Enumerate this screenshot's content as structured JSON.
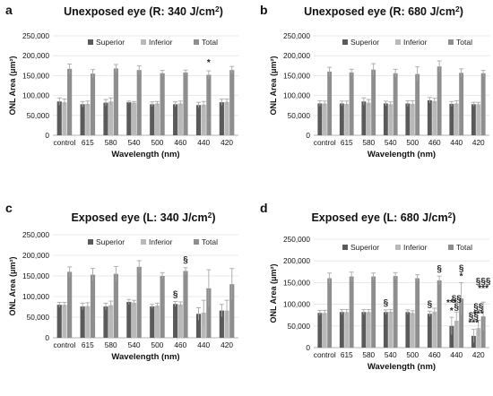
{
  "colors": {
    "superior": "#5a5a5a",
    "inferior": "#b9b9b9",
    "total": "#8e8e8e",
    "grid": "#e2e2e2",
    "errorbar": "#a8a8a8"
  },
  "chart_data": [
    {
      "panel": "a",
      "type": "bar",
      "title_main": "Unexposed eye (R: 340 J/cm",
      "title_sup": "2",
      "title_end": ")",
      "ylabel": "ONL Area (μm²)",
      "xlabel": "Wavelength (nm)",
      "ylim": [
        0,
        250000
      ],
      "yticks": [
        "0",
        "50,000",
        "100,000",
        "150,000",
        "200,000",
        "250,000"
      ],
      "grid": true,
      "legend_position": "top",
      "categories": [
        "control",
        "615",
        "580",
        "540",
        "500",
        "460",
        "440",
        "420"
      ],
      "series": [
        {
          "name": "Superior",
          "values": [
            85000,
            78000,
            82000,
            83000,
            78000,
            78000,
            76000,
            83000
          ],
          "errors": [
            9000,
            7000,
            8000,
            3000,
            6000,
            6000,
            7000,
            8000
          ]
        },
        {
          "name": "Inferior",
          "values": [
            83000,
            79000,
            85000,
            82000,
            80000,
            80000,
            77000,
            84000
          ],
          "errors": [
            8000,
            7000,
            9000,
            3000,
            5000,
            6000,
            8000,
            7000
          ]
        },
        {
          "name": "Total",
          "values": [
            167000,
            155000,
            168000,
            164000,
            156000,
            158000,
            152000,
            164000
          ],
          "errors": [
            12000,
            10000,
            10000,
            11000,
            7000,
            6000,
            10000,
            9000
          ]
        }
      ],
      "annotations": [
        {
          "category": "440",
          "text": "*"
        }
      ]
    },
    {
      "panel": "b",
      "type": "bar",
      "title_main": "Unexposed eye (R: 680 J/cm",
      "title_sup": "2",
      "title_end": ")",
      "ylabel": "ONL Area (μm²)",
      "xlabel": "Wavelength (nm)",
      "ylim": [
        0,
        250000
      ],
      "yticks": [
        "0",
        "50,000",
        "100,000",
        "150,000",
        "200,000",
        "250,000"
      ],
      "grid": true,
      "legend_position": "top",
      "categories": [
        "control",
        "615",
        "580",
        "540",
        "500",
        "460",
        "440",
        "420"
      ],
      "series": [
        {
          "name": "Superior",
          "values": [
            80000,
            80000,
            85000,
            80000,
            80000,
            88000,
            79000,
            78000
          ],
          "errors": [
            7000,
            6000,
            9000,
            6000,
            7000,
            7000,
            6000,
            5000
          ]
        },
        {
          "name": "Inferior",
          "values": [
            80000,
            79000,
            82000,
            78000,
            79000,
            86000,
            80000,
            78000
          ],
          "errors": [
            6000,
            7000,
            8000,
            6000,
            8000,
            7000,
            7000,
            5000
          ]
        },
        {
          "name": "Total",
          "values": [
            160000,
            158000,
            165000,
            156000,
            154000,
            173000,
            157000,
            156000
          ],
          "errors": [
            11000,
            8000,
            15000,
            10000,
            18000,
            14000,
            10000,
            7000
          ]
        }
      ],
      "annotations": []
    },
    {
      "panel": "c",
      "type": "bar",
      "title_main": "Exposed eye (L: 340 J/cm",
      "title_sup": "2",
      "title_end": ")",
      "ylabel": "ONL Area (μm²)",
      "xlabel": "Wavelength (nm)",
      "ylim": [
        0,
        250000
      ],
      "yticks": [
        "0",
        "50,000",
        "100,000",
        "150,000",
        "200,000",
        "250,000"
      ],
      "grid": true,
      "legend_position": "top",
      "categories": [
        "control",
        "615",
        "580",
        "540",
        "500",
        "460",
        "440",
        "420"
      ],
      "series": [
        {
          "name": "Superior",
          "values": [
            80000,
            76000,
            76000,
            87000,
            76000,
            82000,
            58000,
            66000
          ],
          "errors": [
            6000,
            8000,
            8000,
            6000,
            5000,
            6000,
            15000,
            15000
          ]
        },
        {
          "name": "Inferior",
          "values": [
            80000,
            77000,
            79000,
            85000,
            78000,
            81000,
            61000,
            66000
          ],
          "errors": [
            6000,
            8000,
            10000,
            6000,
            6000,
            6000,
            30000,
            25000
          ]
        },
        {
          "name": "Total",
          "values": [
            160000,
            153000,
            155000,
            172000,
            150000,
            162000,
            120000,
            130000
          ],
          "errors": [
            12000,
            15000,
            18000,
            15000,
            8000,
            8000,
            45000,
            38000
          ]
        }
      ],
      "annotations": [
        {
          "category": "460",
          "text": "§"
        },
        {
          "category": "460",
          "text": "§"
        }
      ]
    },
    {
      "panel": "d",
      "type": "bar",
      "title_main": "Exposed eye (L: 680 J/cm",
      "title_sup": "2",
      "title_end": ")",
      "ylabel": "ONL Area (μm²)",
      "xlabel": "Wavelength (nm)",
      "ylim": [
        0,
        250000
      ],
      "yticks": [
        "0",
        "50,000",
        "100,000",
        "150,000",
        "200,000",
        "250,000"
      ],
      "grid": true,
      "legend_position": "top",
      "categories": [
        "control",
        "615",
        "580",
        "540",
        "500",
        "460",
        "440",
        "420"
      ],
      "series": [
        {
          "name": "Superior",
          "values": [
            80000,
            82000,
            82000,
            82000,
            82000,
            78000,
            50000,
            27000
          ],
          "errors": [
            6000,
            6000,
            6000,
            5000,
            5000,
            6000,
            20000,
            15000
          ]
        },
        {
          "name": "Inferior",
          "values": [
            80000,
            82000,
            82000,
            83000,
            80000,
            83000,
            62000,
            45000
          ],
          "errors": [
            6000,
            6000,
            6000,
            5000,
            5000,
            8000,
            20000,
            18000
          ]
        },
        {
          "name": "Total",
          "values": [
            160000,
            164000,
            164000,
            165000,
            160000,
            155000,
            113000,
            72000
          ],
          "errors": [
            12000,
            10000,
            8000,
            8000,
            8000,
            10000,
            37000,
            33000
          ]
        }
      ],
      "annotations": [
        {
          "category": "540",
          "text": "§"
        },
        {
          "category": "460",
          "text": "§"
        },
        {
          "category": "460",
          "text": "§"
        },
        {
          "category": "440",
          "text": "*"
        },
        {
          "category": "440",
          "text": "§"
        },
        {
          "category": "440",
          "text": "*"
        },
        {
          "category": "440",
          "text": "§§"
        },
        {
          "category": "440",
          "text": "§"
        },
        {
          "category": "440",
          "text": "***"
        },
        {
          "category": "420",
          "text": "§§§"
        },
        {
          "category": "420",
          "text": "***"
        },
        {
          "category": "420",
          "text": "§§"
        },
        {
          "category": "420",
          "text": "***"
        },
        {
          "category": "420",
          "text": "§§"
        },
        {
          "category": "420",
          "text": "***"
        }
      ]
    }
  ]
}
